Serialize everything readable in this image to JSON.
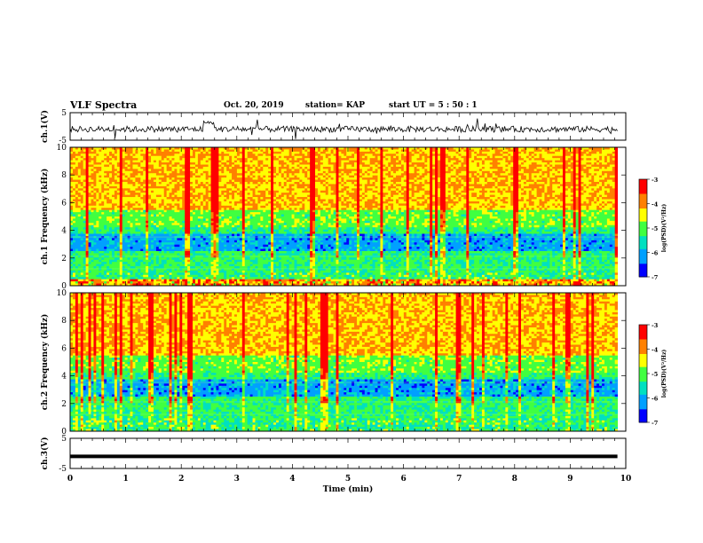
{
  "header": {
    "title": "VLF Spectra",
    "date": "Oct. 20, 2019",
    "station": "station= KAP",
    "start": "start  UT =   5 : 50 : 1"
  },
  "chart_data": [
    {
      "type": "line",
      "ylabel": "ch.1(V)",
      "ylim": [
        -5,
        5
      ],
      "yticks": [
        "5",
        "-5"
      ],
      "xlim": [
        0,
        10
      ],
      "series": [
        {
          "values": "noisy waveform around -1 V with bursts between -5 and 2 V"
        }
      ]
    },
    {
      "type": "heatmap",
      "ylabel": "ch.1 Frequency (kHz)",
      "ylim": [
        0,
        10
      ],
      "yticks": [
        "0",
        "2",
        "4",
        "6",
        "8",
        "10"
      ],
      "xlim": [
        0,
        10
      ],
      "colorbar": {
        "label": "log(PSD)(V²/Hz)",
        "ticks": [
          "-3",
          "-4",
          "-5",
          "-6",
          "-7"
        ],
        "range": [
          -7,
          -3
        ]
      }
    },
    {
      "type": "heatmap",
      "ylabel": "ch.2 Frequency (kHz)",
      "ylim": [
        0,
        10
      ],
      "yticks": [
        "0",
        "2",
        "4",
        "6",
        "8",
        "10"
      ],
      "xlim": [
        0,
        10
      ],
      "colorbar": {
        "label": "log(PSD)(V²/Hz)",
        "ticks": [
          "-3",
          "-4",
          "-5",
          "-6",
          "-7"
        ],
        "range": [
          -7,
          -3
        ]
      }
    },
    {
      "type": "line",
      "ylabel": "ch.3(V)",
      "ylim": [
        -5,
        5
      ],
      "yticks": [
        "5",
        "-5"
      ],
      "xlim": [
        0,
        10
      ],
      "series": [
        {
          "values": [
            -1,
            -1
          ]
        }
      ]
    }
  ],
  "xaxis": {
    "label": "Time  (min)",
    "ticks": [
      "0",
      "1",
      "2",
      "3",
      "4",
      "5",
      "6",
      "7",
      "8",
      "9",
      "10"
    ]
  },
  "colors": {
    "colormap": [
      "#000080",
      "#0000ff",
      "#00a0ff",
      "#00e0c0",
      "#40ff40",
      "#ffff00",
      "#ff8000",
      "#ff0000",
      "#ffffff"
    ]
  }
}
